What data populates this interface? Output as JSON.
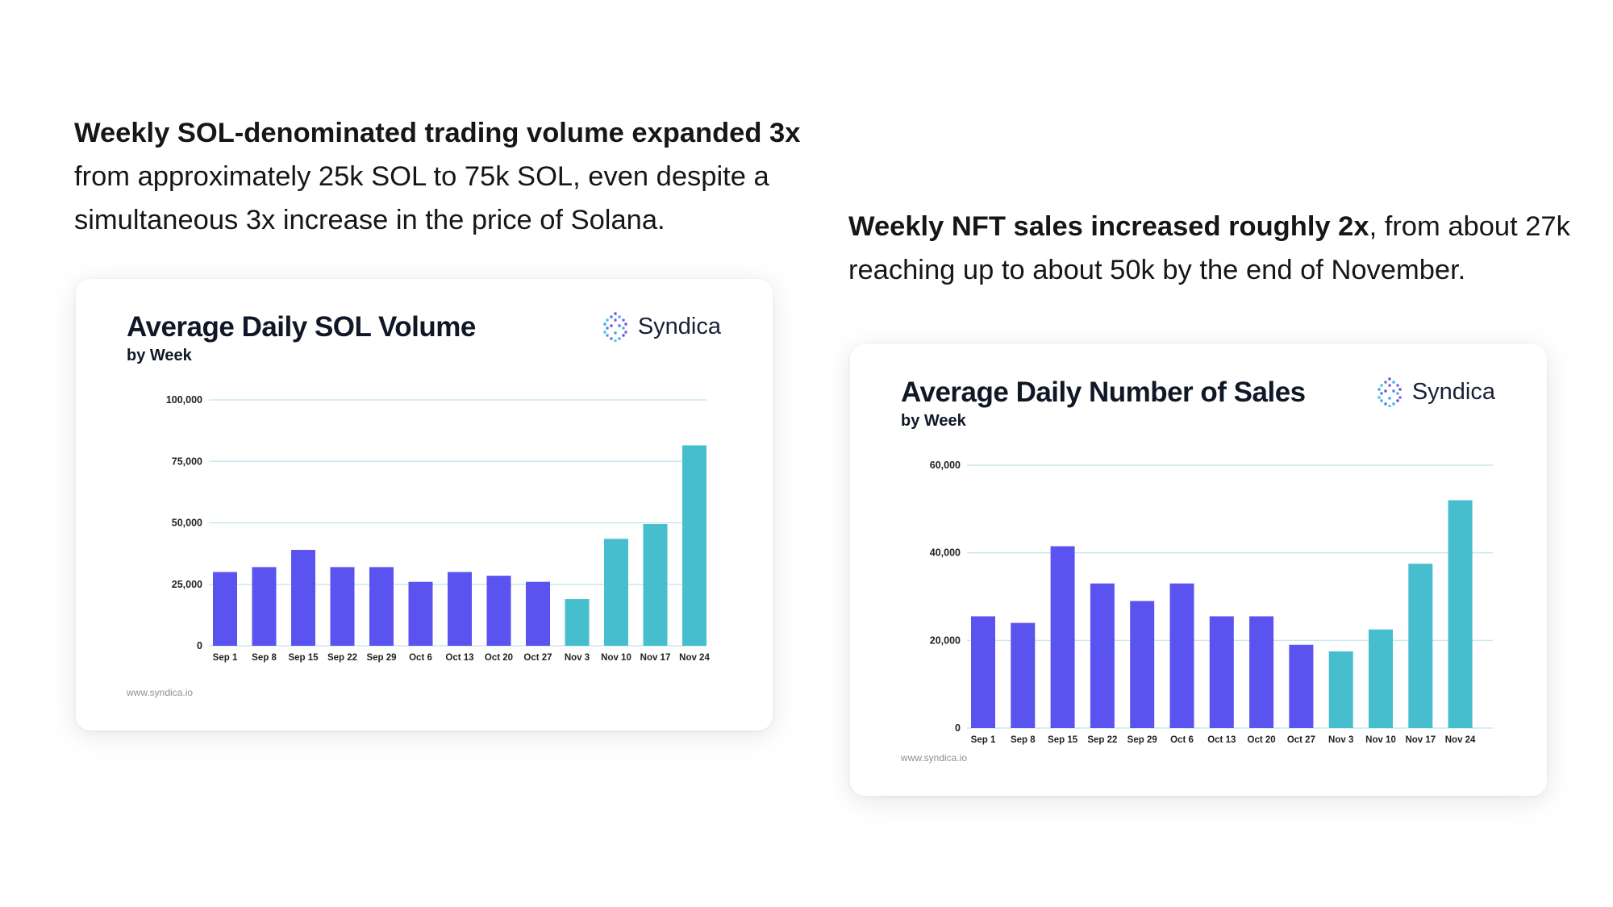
{
  "intro_left": {
    "bold": "Weekly SOL-denominated trading volume expanded 3x",
    "rest": " from approximately 25k SOL to 75k SOL, even despite a simultaneous 3x increase in the price of Solana."
  },
  "intro_right": {
    "bold": "Weekly NFT sales increased roughly 2x",
    "rest": ", from about 27k reaching up to about 50k by the end of November."
  },
  "brand": {
    "name": "Syndica",
    "icon": "syndica-logo-icon"
  },
  "footer_url": "www.syndica.io",
  "colors": {
    "primary_bar": "#5b53f0",
    "highlight_bar": "#46bece",
    "grid": "#bfe3ec"
  },
  "chart_data": [
    {
      "type": "bar",
      "title": "Average Daily SOL Volume",
      "subtitle": "by Week",
      "xlabel": "",
      "ylabel": "",
      "categories": [
        "Sep 1",
        "Sep 8",
        "Sep 15",
        "Sep 22",
        "Sep 29",
        "Oct 6",
        "Oct 13",
        "Oct 20",
        "Oct 27",
        "Nov 3",
        "Nov 10",
        "Nov 17",
        "Nov 24"
      ],
      "values": [
        30000,
        32000,
        39000,
        32000,
        32000,
        26000,
        30000,
        28500,
        26000,
        19000,
        43500,
        49500,
        81500
      ],
      "highlight_from": "Nov 3",
      "ylim": [
        0,
        100000
      ],
      "yticks": [
        0,
        25000,
        50000,
        75000,
        100000
      ],
      "ytick_labels": [
        "0",
        "25,000",
        "50,000",
        "75,000",
        "100,000"
      ],
      "grid": true
    },
    {
      "type": "bar",
      "title": "Average Daily Number of Sales",
      "subtitle": "by Week",
      "xlabel": "",
      "ylabel": "",
      "categories": [
        "Sep 1",
        "Sep 8",
        "Sep 15",
        "Sep 22",
        "Sep 29",
        "Oct 6",
        "Oct 13",
        "Oct 20",
        "Oct 27",
        "Nov 3",
        "Nov 10",
        "Nov 17",
        "Nov 24"
      ],
      "values": [
        25500,
        24000,
        41500,
        33000,
        29000,
        33000,
        25500,
        25500,
        19000,
        17500,
        22500,
        37500,
        52000
      ],
      "highlight_from": "Nov 3",
      "ylim": [
        0,
        60000
      ],
      "yticks": [
        0,
        20000,
        40000,
        60000
      ],
      "ytick_labels": [
        "0",
        "20,000",
        "40,000",
        "60,000"
      ],
      "grid": true
    }
  ]
}
